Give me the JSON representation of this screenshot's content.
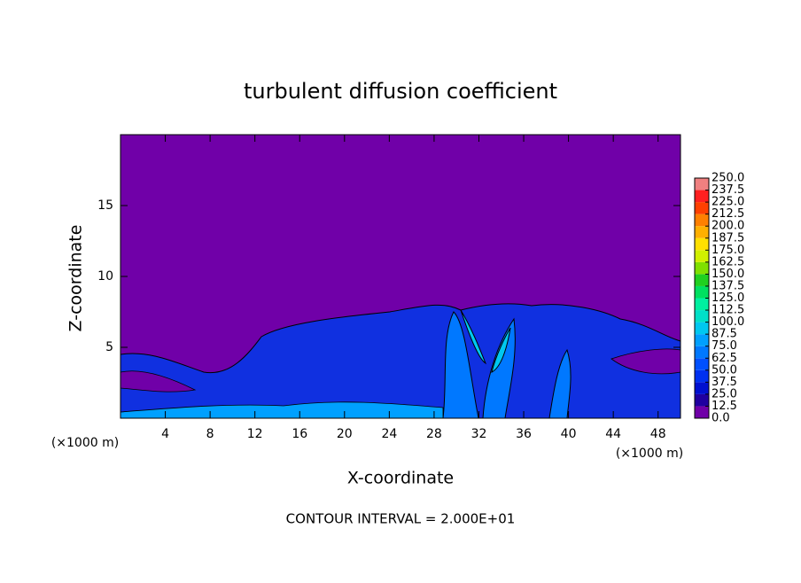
{
  "chart_data": {
    "type": "contour",
    "title": "turbulent diffusion coefficient",
    "x_label": "X-coordinate",
    "y_label": "Z-coordinate",
    "x_unit_labels": [
      "(×1000 m)",
      "(×1000 m)"
    ],
    "footnote": "CONTOUR INTERVAL = 2.000E+01",
    "xlim": [
      0,
      50
    ],
    "ylim": [
      0,
      20
    ],
    "xticks": [
      4,
      8,
      12,
      16,
      20,
      24,
      28,
      32,
      36,
      40,
      44,
      48
    ],
    "yticks": [
      5,
      10,
      15
    ],
    "colorbar": {
      "levels": [
        {
          "value": 0,
          "label": "0.0"
        },
        12.5,
        {
          "value": 25,
          "label": "25.0"
        },
        37.5,
        {
          "value": 50,
          "label": "50.0"
        },
        62.5,
        {
          "value": 75,
          "label": "75.0"
        },
        87.5,
        {
          "value": 100,
          "label": "100.0"
        },
        112.5,
        {
          "value": 125,
          "label": "125.0"
        },
        137.5,
        {
          "value": 150,
          "label": "150.0"
        },
        162.5,
        {
          "value": 175,
          "label": "175.0"
        },
        187.5,
        {
          "value": 200,
          "label": "200.0"
        },
        212.5,
        {
          "value": 225,
          "label": "225.0"
        },
        237.5,
        {
          "value": 250,
          "label": "250.0"
        }
      ],
      "colors": [
        "#7000a8",
        "#2000a0",
        "#0010d0",
        "#0030f0",
        "#0050ff",
        "#0078ff",
        "#00a0ff",
        "#00c8f0",
        "#00e0c8",
        "#00f0a0",
        "#00e060",
        "#20d020",
        "#80e000",
        "#d0f000",
        "#ffe000",
        "#ffb000",
        "#ff8000",
        "#ff4000",
        "#ff2020",
        "#f08080"
      ]
    }
  }
}
